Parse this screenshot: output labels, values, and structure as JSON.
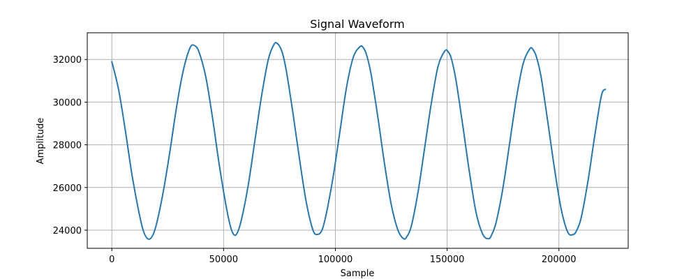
{
  "chart_data": {
    "type": "line",
    "title": "Signal Waveform",
    "xlabel": "Sample",
    "ylabel": "Amplitude",
    "xlim": [
      -11000,
      231000
    ],
    "ylim": [
      23150,
      33250
    ],
    "xticks": [
      0,
      50000,
      100000,
      150000,
      200000
    ],
    "yticks": [
      24000,
      26000,
      28000,
      30000,
      32000
    ],
    "grid": true,
    "series": [
      {
        "color": "#1f77b4",
        "x": [
          0,
          3000,
          6000,
          9000,
          12000,
          14000,
          16000,
          18000,
          20000,
          23000,
          26000,
          29000,
          32000,
          35000,
          37000,
          39000,
          42000,
          45000,
          48000,
          51000,
          53000,
          54500,
          56000,
          58000,
          61000,
          64000,
          67000,
          70000,
          72500,
          74000,
          76000,
          78000,
          81000,
          84000,
          87000,
          90000,
          92000,
          94000,
          96000,
          99000,
          102000,
          105000,
          108000,
          111000,
          112500,
          114000,
          116000,
          119000,
          122000,
          125000,
          128000,
          130500,
          132000,
          134000,
          137000,
          140000,
          143000,
          146000,
          149000,
          150500,
          152000,
          154000,
          157000,
          160000,
          163000,
          166000,
          168500,
          170000,
          172000,
          175000,
          178000,
          181000,
          184000,
          187000,
          188500,
          190000,
          192000,
          195000,
          198000,
          201000,
          204000,
          206500,
          208000,
          210000,
          213000,
          216000,
          219000,
          220800
        ],
        "y": [
          31900,
          30600,
          28700,
          26600,
          24900,
          24000,
          23600,
          23700,
          24300,
          25800,
          27700,
          29800,
          31500,
          32550,
          32650,
          32350,
          31200,
          29300,
          27100,
          25200,
          24200,
          23800,
          23850,
          24500,
          26100,
          28200,
          30300,
          32000,
          32700,
          32750,
          32400,
          31500,
          29500,
          27300,
          25300,
          24000,
          23800,
          24000,
          24800,
          26500,
          28600,
          30700,
          32100,
          32600,
          32550,
          32200,
          31300,
          29300,
          27100,
          25200,
          24000,
          23600,
          23700,
          24200,
          25800,
          27900,
          30000,
          31700,
          32400,
          32350,
          32000,
          31000,
          28900,
          26700,
          24800,
          23800,
          23600,
          23800,
          24400,
          26000,
          28100,
          30200,
          31800,
          32500,
          32450,
          32100,
          31200,
          29100,
          26900,
          25000,
          23900,
          23800,
          24000,
          24600,
          26300,
          28400,
          30300,
          30600
        ]
      }
    ]
  }
}
